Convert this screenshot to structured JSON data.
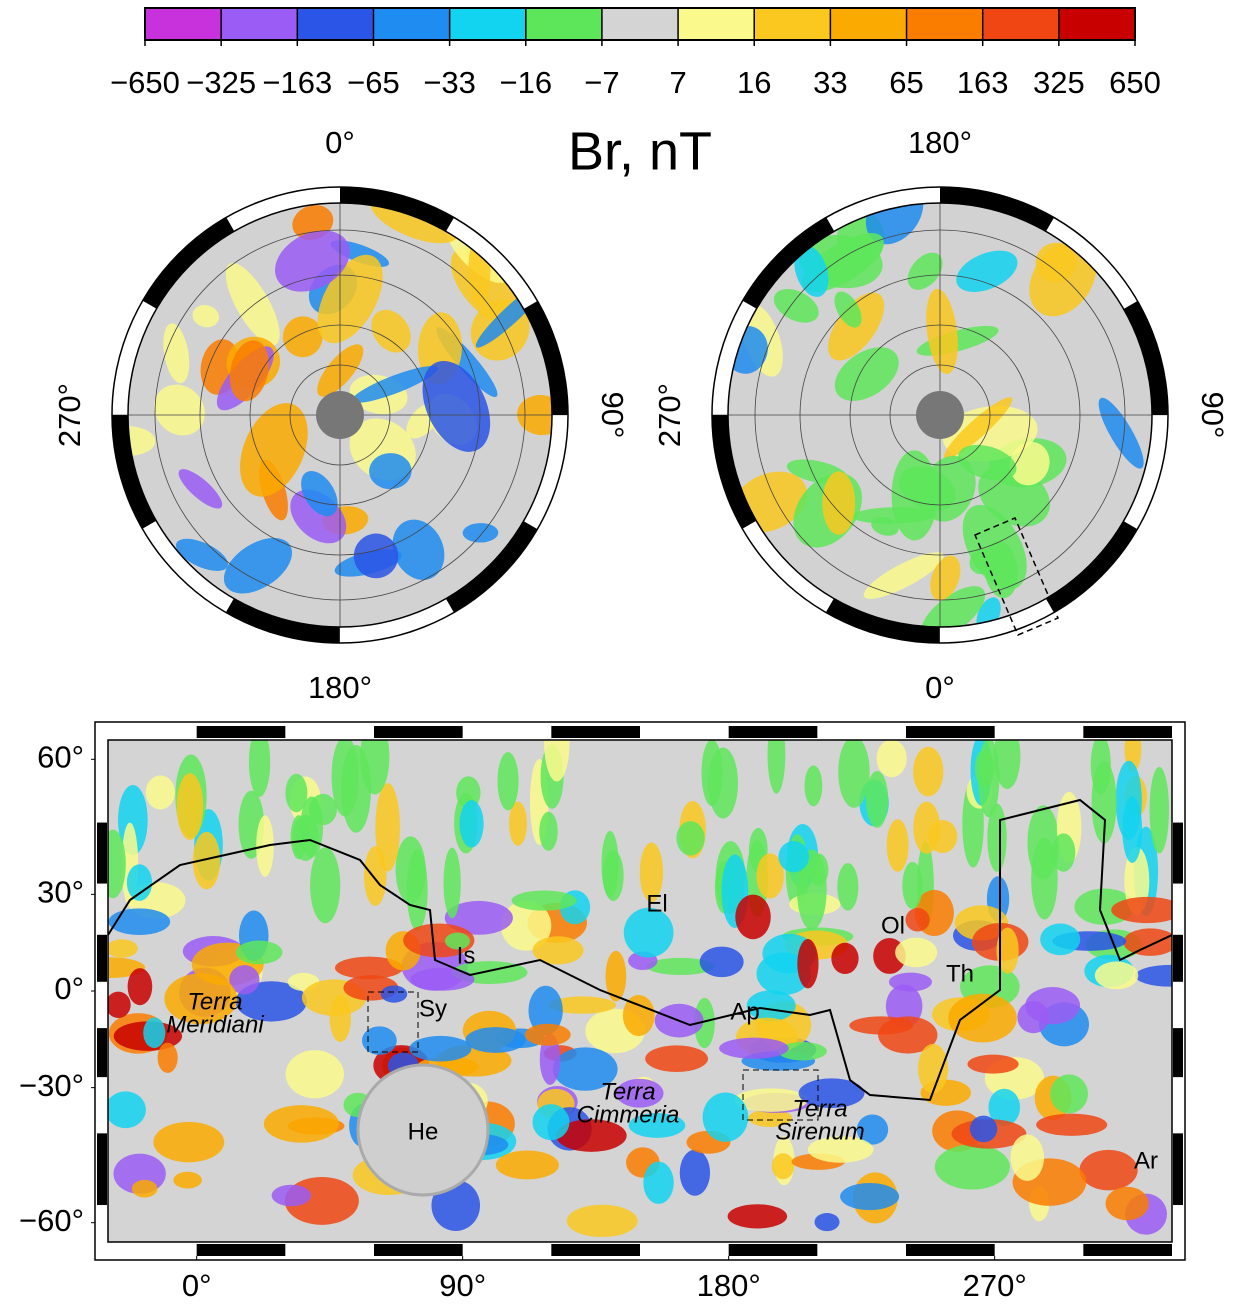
{
  "colorbar": {
    "title": "Br, nT",
    "colors": [
      "#c832dc",
      "#9b5cf5",
      "#2a55e6",
      "#1e8cf0",
      "#12d4f0",
      "#5ee65a",
      "#d4d4d4",
      "#fafa8c",
      "#fac81e",
      "#faaa00",
      "#fa7d00",
      "#f04614",
      "#c80000"
    ],
    "ticks": [
      {
        "value": -650,
        "label": "−650"
      },
      {
        "value": -325,
        "label": "−325"
      },
      {
        "value": -163,
        "label": "−163"
      },
      {
        "value": -65,
        "label": "−65"
      },
      {
        "value": -33,
        "label": "−33"
      },
      {
        "value": -16,
        "label": "−16"
      },
      {
        "value": -7,
        "label": "−7"
      },
      7,
      16,
      33,
      65,
      163,
      325,
      650
    ]
  },
  "polar_maps": [
    {
      "top": "0°",
      "left": "270°",
      "right": "90°",
      "bottom": "180°"
    },
    {
      "top": "180°",
      "left": "270°",
      "right": "90°",
      "bottom": "0°"
    }
  ],
  "map": {
    "projection": "mercator",
    "xlim": [
      -30,
      330
    ],
    "ylim": [
      -63,
      63
    ],
    "xticks": [
      {
        "value": 0,
        "label": "0°"
      },
      {
        "value": 90,
        "label": "90°"
      },
      {
        "value": 180,
        "label": "180°"
      },
      {
        "value": 270,
        "label": "270°"
      }
    ],
    "yticks": [
      {
        "value": 60,
        "label": "60°"
      },
      {
        "value": 30,
        "label": "30°"
      },
      {
        "value": 0,
        "label": "0°"
      },
      {
        "value": -30,
        "label": "−30°"
      },
      {
        "value": -60,
        "label": "−60°"
      }
    ],
    "places": [
      {
        "lines": [
          "Terra",
          "Meridiani"
        ],
        "italic": true
      },
      {
        "lines": [
          "Sy"
        ],
        "italic": false
      },
      {
        "lines": [
          "He"
        ],
        "italic": false
      },
      {
        "lines": [
          "Terra",
          "Cimmeria"
        ],
        "italic": true
      },
      {
        "lines": [
          "Terra",
          "Sirenum"
        ],
        "italic": true
      },
      {
        "lines": [
          "Ap"
        ],
        "italic": false
      },
      {
        "lines": [
          "El"
        ],
        "italic": false
      },
      {
        "lines": [
          "Is"
        ],
        "italic": false
      },
      {
        "lines": [
          "Ol"
        ],
        "italic": false
      },
      {
        "lines": [
          "Th"
        ],
        "italic": false
      },
      {
        "lines": [
          "Ar"
        ],
        "italic": false
      }
    ]
  }
}
